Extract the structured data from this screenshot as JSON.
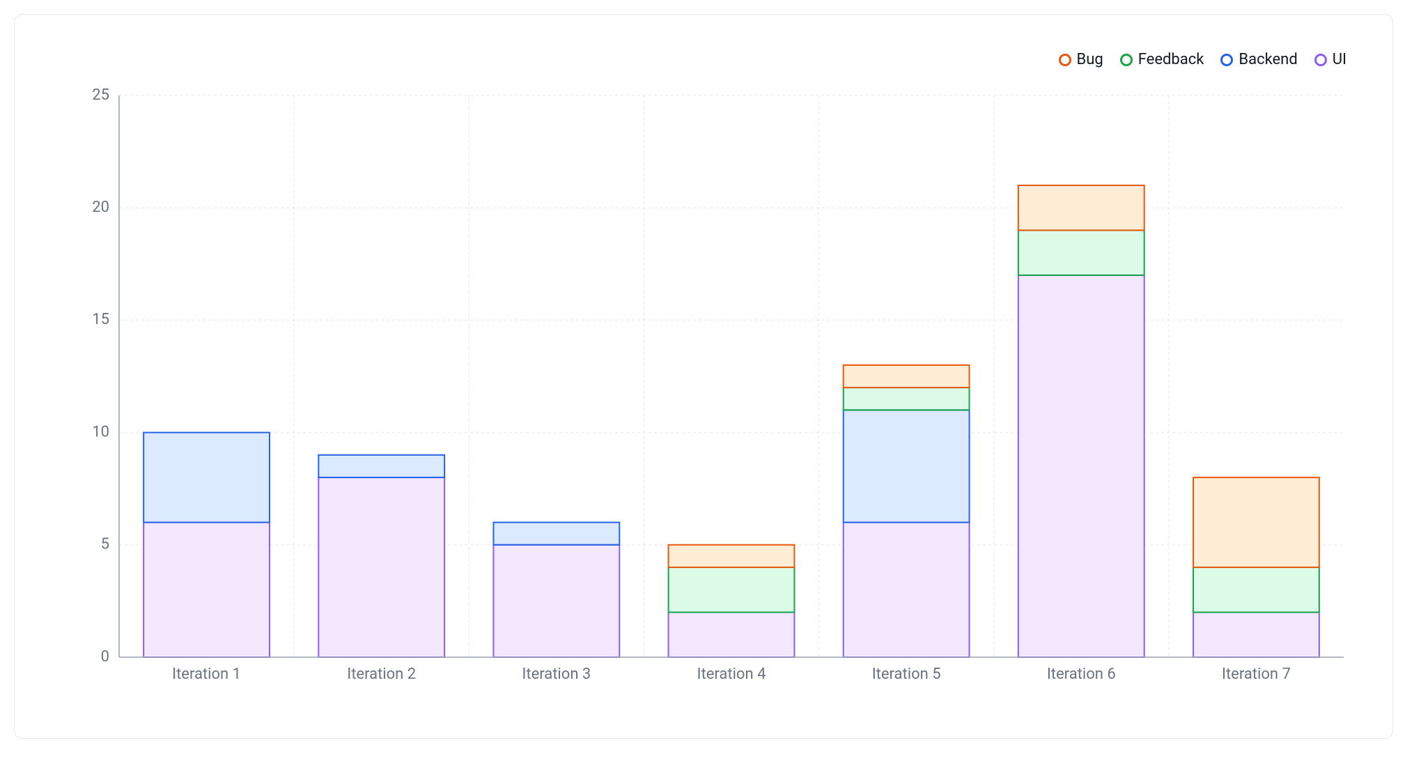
{
  "chart": {
    "type": "stacked-bar",
    "background_color": "#ffffff",
    "border_color": "#e5e7eb",
    "axis_color": "#9ca3af",
    "grid_color": "#e5e7eb",
    "tick_label_color": "#6b7280",
    "tick_fontsize": 22,
    "border_width": 2,
    "ylim": [
      0,
      25
    ],
    "ytick_step": 5,
    "yticks": [
      0,
      5,
      10,
      15,
      20,
      25
    ],
    "categories": [
      "Iteration 1",
      "Iteration 2",
      "Iteration 3",
      "Iteration 4",
      "Iteration 5",
      "Iteration 6",
      "Iteration 7"
    ],
    "series": [
      {
        "key": "ui",
        "label": "UI",
        "stroke": "#8b5cf6",
        "fill": "#f3e8ff"
      },
      {
        "key": "backend",
        "label": "Backend",
        "stroke": "#2563eb",
        "fill": "#dbeafe"
      },
      {
        "key": "feedback",
        "label": "Feedback",
        "stroke": "#16a34a",
        "fill": "#dcfce7"
      },
      {
        "key": "bug",
        "label": "Bug",
        "stroke": "#ea580c",
        "fill": "#ffedd5"
      }
    ],
    "legend_order": [
      "bug",
      "feedback",
      "backend",
      "ui"
    ],
    "legend_fontsize": 22,
    "bar_width_ratio": 0.72,
    "data": [
      {
        "ui": 6,
        "backend": 4,
        "feedback": 0,
        "bug": 0
      },
      {
        "ui": 8,
        "backend": 1,
        "feedback": 0,
        "bug": 0
      },
      {
        "ui": 5,
        "backend": 1,
        "feedback": 0,
        "bug": 0
      },
      {
        "ui": 2,
        "backend": 0,
        "feedback": 2,
        "bug": 1
      },
      {
        "ui": 6,
        "backend": 5,
        "feedback": 1,
        "bug": 1
      },
      {
        "ui": 17,
        "backend": 0,
        "feedback": 2,
        "bug": 2
      },
      {
        "ui": 2,
        "backend": 0,
        "feedback": 2,
        "bug": 4
      }
    ]
  }
}
